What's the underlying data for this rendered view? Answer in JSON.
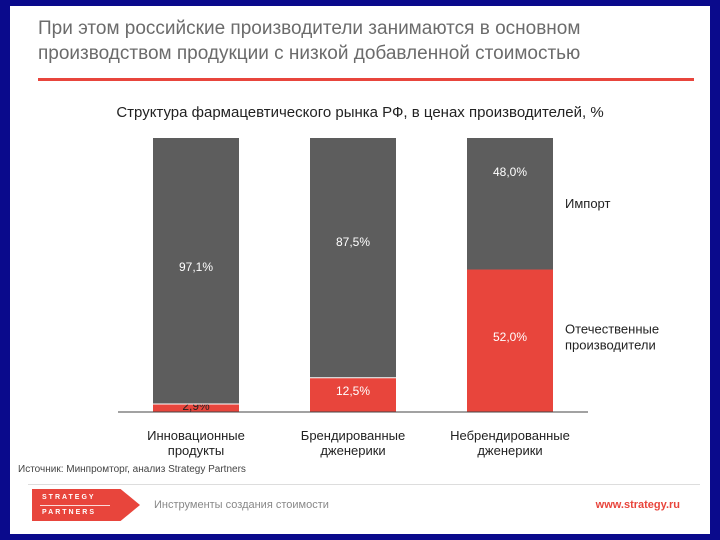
{
  "slide": {
    "title": "При этом российские производители занимаются в основном производством продукции с низкой добавленной стоимостью",
    "source": "Источник: Минпромторг, анализ Strategy Partners"
  },
  "footer": {
    "logo_line1": "STRATEGY",
    "logo_line2": "PARTNERS",
    "tagline": "Инструменты создания стоимости",
    "url": "www.strategy.ru"
  },
  "colors": {
    "import": "#5d5d5d",
    "domestic": "#e8453c",
    "accent": "#e8453c",
    "background": "#0a0a8c"
  },
  "chart_data": {
    "type": "bar",
    "stacked": true,
    "title": "Структура фармацевтического рынка РФ, в ценах производителей, %",
    "categories": [
      "Инновационные продукты",
      "Брендированные дженерики",
      "Небрендированные дженерики"
    ],
    "category_lines": [
      [
        "Инновационные",
        "продукты"
      ],
      [
        "Брендированные",
        "дженерики"
      ],
      [
        "Небрендированные",
        "дженерики"
      ]
    ],
    "series": [
      {
        "name": "Отечественные производители",
        "values": [
          2.9,
          12.5,
          52.0
        ],
        "labels": [
          "2,9%",
          "12,5%",
          "52,0%"
        ]
      },
      {
        "name": "Импорт",
        "values": [
          97.1,
          87.5,
          48.0
        ],
        "labels": [
          "97,1%",
          "87,5%",
          "48,0%"
        ]
      }
    ],
    "legend_lines": [
      [
        "Отечественные",
        "производители"
      ],
      [
        "Импорт"
      ]
    ],
    "ylim": [
      0,
      100
    ],
    "xlabel": "",
    "ylabel": ""
  }
}
